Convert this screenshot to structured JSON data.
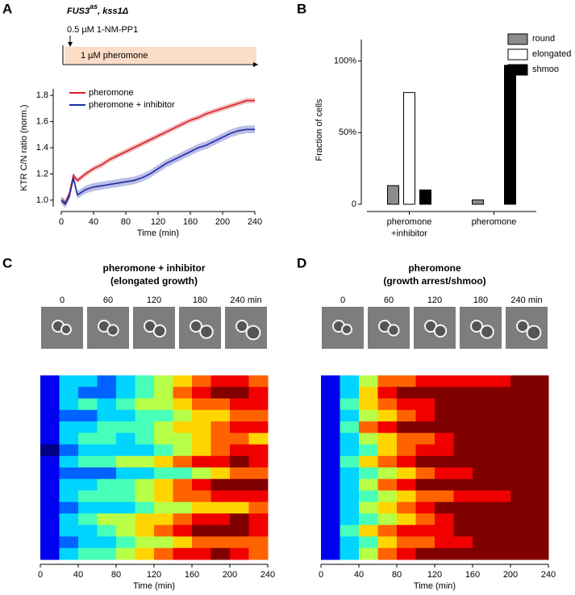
{
  "panel_labels": [
    "A",
    "B",
    "C",
    "D"
  ],
  "chart_data": [
    {
      "type": "line",
      "title": [
        "FUS3",
        "as",
        ", kss1Δ"
      ],
      "annotations": [
        "0.5 µM 1-NM-PP1",
        "1 µM pheromone"
      ],
      "xlabel": "Time (min)",
      "ylabel": "KTR C/N ratio (norm.)",
      "x": [
        0,
        5,
        10,
        15,
        20,
        30,
        40,
        50,
        60,
        70,
        80,
        90,
        100,
        110,
        120,
        130,
        140,
        150,
        160,
        170,
        180,
        190,
        200,
        210,
        220,
        230,
        240
      ],
      "xlim": [
        0,
        240
      ],
      "xticks": [
        0,
        40,
        80,
        120,
        160,
        200,
        240
      ],
      "ylim": [
        0.95,
        1.85
      ],
      "yticks": [
        {
          "value": 1,
          "label": "1.0"
        },
        1.2,
        1.4,
        1.6,
        1.8
      ],
      "legend": "upper left",
      "series": [
        {
          "name": "pheromone",
          "color": "#d62027",
          "values": [
            1.0,
            0.98,
            1.05,
            1.19,
            1.15,
            1.2,
            1.24,
            1.27,
            1.31,
            1.34,
            1.37,
            1.4,
            1.43,
            1.46,
            1.49,
            1.52,
            1.55,
            1.58,
            1.61,
            1.63,
            1.66,
            1.68,
            1.7,
            1.72,
            1.74,
            1.76,
            1.76
          ],
          "error": [
            0.02,
            0.02,
            0.02,
            0.02,
            0.02,
            0.02,
            0.02,
            0.02,
            0.02,
            0.02,
            0.02,
            0.02,
            0.02,
            0.02,
            0.02,
            0.02,
            0.02,
            0.02,
            0.02,
            0.02,
            0.02,
            0.02,
            0.02,
            0.02,
            0.02,
            0.02,
            0.02
          ]
        },
        {
          "name": "pheromone + inhibitor",
          "color": "#1f2ca8",
          "values": [
            1.0,
            0.97,
            1.03,
            1.17,
            1.04,
            1.08,
            1.1,
            1.11,
            1.12,
            1.13,
            1.14,
            1.15,
            1.17,
            1.2,
            1.24,
            1.28,
            1.31,
            1.34,
            1.37,
            1.4,
            1.42,
            1.45,
            1.48,
            1.51,
            1.53,
            1.54,
            1.54
          ],
          "error": [
            0.03,
            0.03,
            0.03,
            0.03,
            0.03,
            0.03,
            0.03,
            0.03,
            0.03,
            0.03,
            0.03,
            0.03,
            0.03,
            0.03,
            0.03,
            0.03,
            0.03,
            0.03,
            0.03,
            0.03,
            0.03,
            0.03,
            0.03,
            0.03,
            0.03,
            0.03,
            0.03
          ]
        }
      ]
    },
    {
      "type": "bar",
      "ylabel": "Fraction of cells",
      "categories": [
        "pheromone\n+inhibitor",
        "pheromone"
      ],
      "ylim": [
        0,
        115
      ],
      "yticks": [
        0,
        {
          "value": 50,
          "label": "50%"
        },
        {
          "value": 100,
          "label": "100%"
        }
      ],
      "legend": "upper right",
      "series": [
        {
          "name": "round",
          "color": "#8c8c8c",
          "values": [
            13,
            3
          ]
        },
        {
          "name": "elongated",
          "color": "#ffffff",
          "values": [
            78,
            0
          ]
        },
        {
          "name": "shmoo",
          "color": "#000000",
          "values": [
            10,
            97
          ]
        }
      ]
    },
    {
      "type": "heatmap",
      "title": "pheromone + inhibitor",
      "subtitle": "(elongated growth)",
      "image_labels": [
        "0",
        "60",
        "120",
        "180",
        "240 min"
      ],
      "xlabel": "Time (min)",
      "xlim": [
        0,
        240
      ],
      "xticks": [
        0,
        40,
        80,
        120,
        160,
        200,
        240
      ],
      "colormap": "jet",
      "zlim": [
        0,
        9
      ],
      "z": [
        [
          1,
          3,
          3,
          2,
          3,
          4,
          5,
          6,
          7,
          8,
          8,
          7
        ],
        [
          1,
          3,
          2,
          2,
          3,
          4,
          5,
          7,
          8,
          9,
          9,
          8
        ],
        [
          1,
          3,
          4,
          3,
          4,
          5,
          5,
          6,
          7,
          7,
          8,
          8
        ],
        [
          1,
          2,
          2,
          3,
          3,
          4,
          4,
          5,
          6,
          6,
          7,
          7
        ],
        [
          1,
          3,
          3,
          4,
          4,
          4,
          5,
          6,
          6,
          7,
          8,
          8
        ],
        [
          1,
          3,
          4,
          4,
          3,
          4,
          5,
          5,
          6,
          7,
          7,
          6
        ],
        [
          0,
          2,
          3,
          3,
          3,
          3,
          4,
          5,
          6,
          7,
          8,
          8
        ],
        [
          1,
          3,
          4,
          4,
          5,
          5,
          6,
          7,
          8,
          8,
          9,
          8
        ],
        [
          1,
          2,
          2,
          2,
          3,
          3,
          4,
          4,
          5,
          6,
          7,
          7
        ],
        [
          1,
          3,
          3,
          4,
          4,
          5,
          6,
          7,
          8,
          9,
          9,
          9
        ],
        [
          1,
          3,
          4,
          4,
          4,
          5,
          6,
          7,
          7,
          8,
          8,
          8
        ],
        [
          1,
          2,
          3,
          3,
          3,
          4,
          5,
          5,
          6,
          6,
          6,
          7
        ],
        [
          1,
          3,
          4,
          5,
          5,
          6,
          6,
          7,
          8,
          8,
          9,
          8
        ],
        [
          1,
          3,
          3,
          4,
          5,
          6,
          7,
          8,
          9,
          9,
          9,
          8
        ],
        [
          1,
          2,
          3,
          3,
          4,
          5,
          5,
          6,
          7,
          7,
          7,
          7
        ],
        [
          1,
          3,
          4,
          4,
          5,
          6,
          7,
          8,
          8,
          9,
          8,
          7
        ]
      ]
    },
    {
      "type": "heatmap",
      "title": "pheromone",
      "subtitle": "(growth arrest/shmoo)",
      "image_labels": [
        "0",
        "60",
        "120",
        "180",
        "240 min"
      ],
      "xlabel": "Time (min)",
      "xlim": [
        0,
        240
      ],
      "xticks": [
        0,
        40,
        80,
        120,
        160,
        200,
        240
      ],
      "colormap": "jet",
      "zlim": [
        0,
        9
      ],
      "z": [
        [
          1,
          3,
          5,
          7,
          7,
          8,
          8,
          8,
          8,
          8,
          9,
          9
        ],
        [
          1,
          3,
          6,
          8,
          9,
          9,
          9,
          9,
          9,
          9,
          9,
          9
        ],
        [
          1,
          4,
          6,
          7,
          8,
          8,
          9,
          9,
          9,
          9,
          9,
          9
        ],
        [
          1,
          3,
          5,
          6,
          7,
          8,
          9,
          9,
          9,
          9,
          9,
          9
        ],
        [
          1,
          4,
          7,
          8,
          9,
          9,
          9,
          9,
          9,
          9,
          9,
          9
        ],
        [
          1,
          3,
          5,
          6,
          7,
          7,
          8,
          9,
          9,
          9,
          9,
          9
        ],
        [
          1,
          3,
          4,
          6,
          7,
          8,
          8,
          9,
          9,
          9,
          9,
          9
        ],
        [
          1,
          4,
          6,
          7,
          8,
          9,
          9,
          9,
          9,
          9,
          9,
          9
        ],
        [
          1,
          3,
          4,
          5,
          6,
          7,
          8,
          8,
          9,
          9,
          9,
          9
        ],
        [
          1,
          3,
          5,
          7,
          8,
          9,
          9,
          9,
          9,
          9,
          9,
          9
        ],
        [
          1,
          3,
          4,
          5,
          6,
          7,
          7,
          8,
          8,
          8,
          9,
          9
        ],
        [
          1,
          3,
          5,
          6,
          7,
          8,
          9,
          9,
          9,
          9,
          9,
          9
        ],
        [
          1,
          3,
          4,
          5,
          6,
          7,
          8,
          9,
          9,
          9,
          9,
          9
        ],
        [
          1,
          4,
          6,
          7,
          8,
          8,
          8,
          9,
          9,
          9,
          9,
          9
        ],
        [
          1,
          3,
          4,
          6,
          7,
          7,
          8,
          8,
          9,
          9,
          9,
          9
        ],
        [
          1,
          3,
          5,
          7,
          8,
          9,
          9,
          9,
          9,
          9,
          9,
          9
        ]
      ]
    }
  ]
}
